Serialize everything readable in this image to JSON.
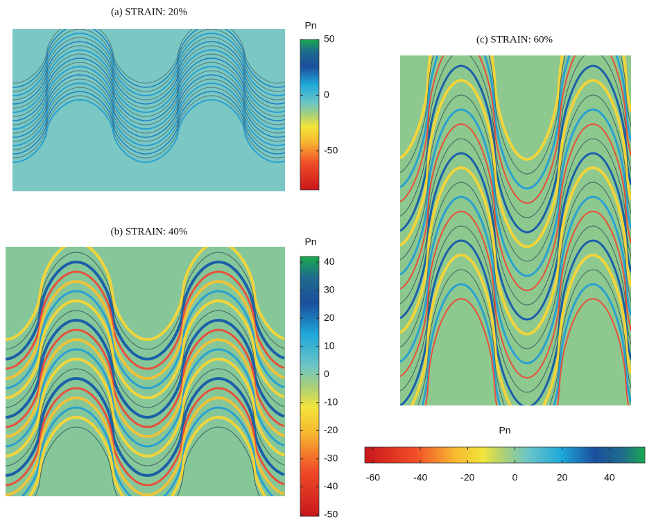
{
  "panels": [
    {
      "title": "(a)  STRAIN: 20%",
      "colorbar": {
        "label": "Pn",
        "lim": [
          -85,
          50
        ],
        "ticks": [
          50,
          0,
          -50
        ]
      }
    },
    {
      "title": "(b)  STRAIN: 40%",
      "colorbar": {
        "label": "Pn",
        "lim": [
          -50.5,
          42
        ],
        "ticks": [
          40,
          30,
          20,
          10,
          0,
          -10,
          -20,
          -30,
          -40,
          -50
        ]
      }
    },
    {
      "title": "(c)  STRAIN: 60%",
      "colorbar": {
        "label": "Pn",
        "lim": [
          -63.5,
          55
        ],
        "ticks": [
          -60,
          -40,
          -20,
          0,
          20,
          40
        ]
      }
    }
  ]
}
